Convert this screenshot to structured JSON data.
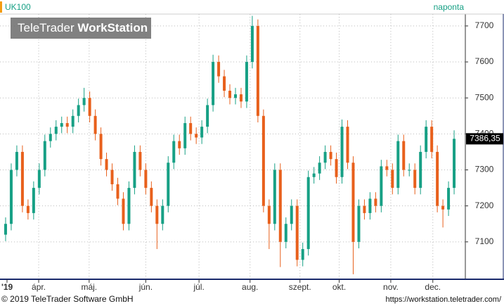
{
  "chart_data": {
    "type": "candlestick",
    "title": "UK100",
    "subtitle": "naponta",
    "watermark": [
      "TeleTrader",
      "WorkStation"
    ],
    "footer_left": "© 2019 TeleTrader Software GmbH",
    "footer_right": "https://workstation.teletrader.com/",
    "up_color": "#17a085",
    "down_color": "#e8601c",
    "open": [
      7120,
      7150,
      7300,
      7350,
      7200,
      7180,
      7250,
      7300,
      7380,
      7400,
      7420,
      7430,
      7420,
      7450,
      7480,
      7500,
      7450,
      7400,
      7330,
      7300,
      7260,
      7220,
      7150,
      7250,
      7350,
      7300,
      7250,
      7200,
      7150,
      7200,
      7320,
      7380,
      7360,
      7430,
      7400,
      7390,
      7420,
      7480,
      7600,
      7560,
      7520,
      7500,
      7510,
      7490,
      7600,
      7700,
      7450,
      7200,
      7150,
      7300,
      7100,
      7150,
      7200,
      7050,
      7080,
      7280,
      7290,
      7320,
      7350,
      7330,
      7280,
      7420,
      7320,
      7100,
      7200,
      7180,
      7220,
      7200,
      7310,
      7300,
      7250,
      7380,
      7300,
      7300,
      7250,
      7350,
      7420,
      7350,
      7200,
      7190,
      7250
    ],
    "high": [
      7168,
      7318,
      7368,
      7368,
      7218,
      7268,
      7318,
      7398,
      7418,
      7438,
      7448,
      7448,
      7468,
      7498,
      7528,
      7518,
      7468,
      7418,
      7348,
      7318,
      7278,
      7238,
      7268,
      7368,
      7368,
      7318,
      7268,
      7218,
      7218,
      7338,
      7398,
      7398,
      7448,
      7448,
      7418,
      7438,
      7498,
      7620,
      7618,
      7578,
      7538,
      7528,
      7528,
      7618,
      7728,
      7718,
      7468,
      7218,
      7318,
      7318,
      7168,
      7218,
      7218,
      7098,
      7298,
      7308,
      7338,
      7368,
      7368,
      7348,
      7440,
      7438,
      7338,
      7218,
      7218,
      7238,
      7238,
      7328,
      7328,
      7318,
      7398,
      7398,
      7318,
      7318,
      7368,
      7438,
      7438,
      7368,
      7218,
      7268,
      7410
    ],
    "low": [
      7102,
      7132,
      7282,
      7182,
      7162,
      7162,
      7232,
      7282,
      7362,
      7382,
      7402,
      7402,
      7402,
      7432,
      7462,
      7432,
      7382,
      7312,
      7282,
      7242,
      7202,
      7132,
      7132,
      7232,
      7282,
      7232,
      7182,
      7080,
      7132,
      7182,
      7302,
      7342,
      7342,
      7382,
      7372,
      7372,
      7402,
      7462,
      7542,
      7502,
      7482,
      7482,
      7472,
      7472,
      7582,
      7432,
      7182,
      7080,
      7132,
      7030,
      7082,
      7132,
      7032,
      7032,
      7062,
      7262,
      7272,
      7302,
      7312,
      7262,
      7262,
      7302,
      7010,
      7082,
      7162,
      7162,
      7182,
      7182,
      7282,
      7232,
      7232,
      7282,
      7282,
      7232,
      7232,
      7332,
      7332,
      7182,
      7140,
      7172,
      7232
    ],
    "close": [
      7150,
      7300,
      7350,
      7200,
      7180,
      7250,
      7300,
      7380,
      7400,
      7420,
      7430,
      7420,
      7450,
      7480,
      7500,
      7450,
      7400,
      7330,
      7300,
      7260,
      7220,
      7150,
      7250,
      7350,
      7300,
      7250,
      7200,
      7150,
      7200,
      7320,
      7380,
      7360,
      7430,
      7400,
      7390,
      7420,
      7480,
      7600,
      7560,
      7520,
      7500,
      7510,
      7490,
      7600,
      7700,
      7450,
      7200,
      7150,
      7300,
      7100,
      7150,
      7200,
      7050,
      7080,
      7280,
      7290,
      7320,
      7350,
      7330,
      7280,
      7420,
      7320,
      7100,
      7200,
      7180,
      7220,
      7200,
      7310,
      7300,
      7250,
      7380,
      7300,
      7300,
      7250,
      7350,
      7420,
      7350,
      7200,
      7190,
      7250,
      7386.35
    ],
    "last_label": "7386,35",
    "xlim": [
      -1,
      82
    ],
    "xticks": [
      {
        "value": 0.25,
        "label": "'19"
      },
      {
        "value": 5.9,
        "label": "ápr."
      },
      {
        "value": 14.9,
        "label": "máj."
      },
      {
        "value": 25,
        "label": "jún."
      },
      {
        "value": 34.5,
        "label": "júl."
      },
      {
        "value": 43.6,
        "label": "aug."
      },
      {
        "value": 52.5,
        "label": "szept."
      },
      {
        "value": 59.5,
        "label": "okt."
      },
      {
        "value": 68.7,
        "label": "nov."
      },
      {
        "value": 76.2,
        "label": "dec."
      }
    ],
    "ylim": [
      6998,
      7733
    ],
    "yticks": [
      7100,
      7200,
      7300,
      7400,
      7500,
      7600,
      7700
    ],
    "grid": true
  }
}
